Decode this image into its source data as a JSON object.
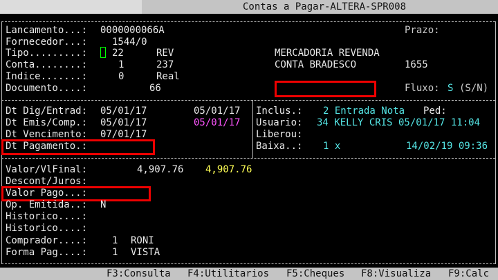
{
  "window": {
    "title": "Contas a Pagar-ALTERA-SPR008"
  },
  "header": {
    "lancamento_label": "Lancamento...:",
    "lancamento": "0000000066A",
    "fornecedor_label": "Fornecedor...:",
    "fornecedor": "1544/0",
    "tipo_label": "Tipo.........:",
    "tipo_code": "22",
    "tipo_abbr": "REV",
    "tipo_desc": "MERCADORIA REVENDA",
    "conta_label": "Conta........:",
    "conta_code": "1",
    "conta_bank": "237",
    "conta_desc": "CONTA BRADESCO",
    "conta_num": "1655",
    "indice_label": "Indice.......:",
    "indice_code": "0",
    "indice_desc": "Real",
    "documento_label": "Documento....:",
    "documento": "66",
    "prazo_label": "Prazo:",
    "fluxo_label": "Fluxo:",
    "fluxo": "S",
    "fluxo_hint": "(S/N)"
  },
  "dates": {
    "dig_label": "Dt Dig/Entrad:",
    "dig1": "05/01/17",
    "dig2": "05/01/17",
    "emis_label": "Dt Emis/Comp.:",
    "emis1": "05/01/17",
    "emis2": "05/01/17",
    "venc_label": "Dt Vencimento:",
    "venc": "07/01/17",
    "pag_label": "Dt Pagamento.:"
  },
  "audit": {
    "inclus_label": "Inclus.:",
    "inclus": "2 Entrada Nota",
    "ped_label": "Ped:",
    "usuario_label": "Usuario:",
    "usuario": "34 KELLY CRIS 05/01/17 11:04",
    "liberou_label": "Liberou:",
    "baixa_label": "Baixa..:",
    "baixa": "1 x",
    "baixa_dt": "14/02/19 09:36"
  },
  "values": {
    "valor_label": "Valor/VlFinal:",
    "valor": "4,907.76",
    "valor_final": "4,907.76",
    "descont_label": "Descont/Juros:",
    "pago_label": "Valor Pago...:",
    "op_label": "Op. Emitida..:",
    "op": "N",
    "hist1_label": "Historico....:",
    "hist2_label": "Historico....:",
    "comprador_label": "Comprador....:",
    "comprador_code": "1",
    "comprador": "RONI",
    "forma_label": "Forma Pag....:",
    "forma_code": "1",
    "forma": "VISTA"
  },
  "footer": {
    "keys": [
      "F3:Consulta",
      "F4:Utilitarios",
      "F5:Cheques",
      "F8:Visualiza",
      "F9:Calc"
    ]
  },
  "colors": {
    "highlight_box": "#e00000",
    "cyan": "#55e6e6",
    "magenta": "#ff55ff",
    "yellow": "#ffff55",
    "cursor": "#00ff00"
  }
}
